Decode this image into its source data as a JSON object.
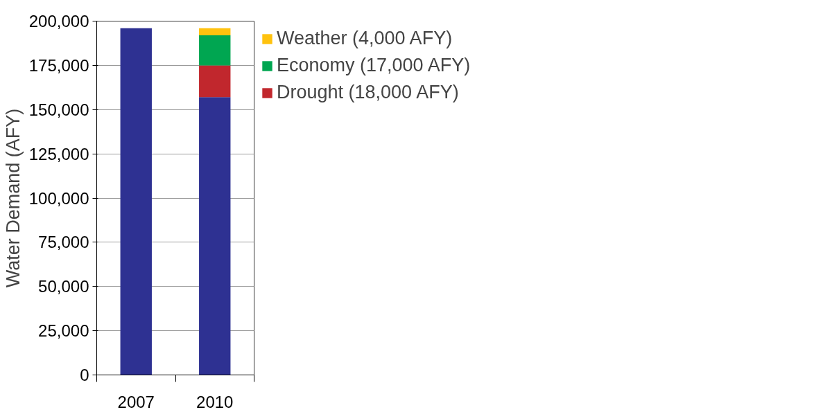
{
  "chart_data": {
    "type": "bar",
    "stacked": true,
    "ylabel": "Water Demand (AFY)",
    "categories": [
      "2007",
      "2010"
    ],
    "series": [
      {
        "color": "#2e3192",
        "values": [
          196000,
          157000
        ]
      },
      {
        "name": "Drought (18,000 AFY)",
        "color": "#c1272d",
        "values": [
          0,
          18000
        ]
      },
      {
        "name": "Economy (17,000 AFY)",
        "color": "#00a651",
        "values": [
          0,
          17000
        ]
      },
      {
        "name": "Weather (4,000 AFY)",
        "color": "#ffc20e",
        "values": [
          0,
          4000
        ]
      }
    ],
    "ylim": [
      0,
      200000
    ],
    "yticks": [
      {
        "value": 0,
        "label": "0"
      },
      {
        "value": 25000,
        "label": "25,000"
      },
      {
        "value": 50000,
        "label": "50,000"
      },
      {
        "value": 75000,
        "label": "75,000"
      },
      {
        "value": 100000,
        "label": "100,000"
      },
      {
        "value": 125000,
        "label": "125,000"
      },
      {
        "value": 150000,
        "label": "150,000"
      },
      {
        "value": 175000,
        "label": "175,000"
      },
      {
        "value": 200000,
        "label": "200,000"
      }
    ],
    "grid": "y",
    "legend": "right"
  }
}
